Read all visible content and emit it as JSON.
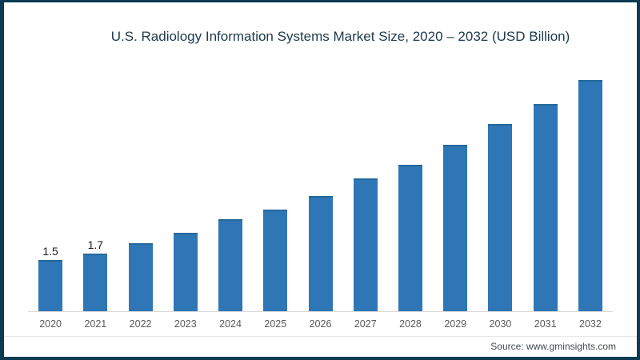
{
  "window": {
    "background": "#ffffff",
    "border_color": "#0d3a52"
  },
  "chart_data": {
    "type": "bar",
    "title": "U.S. Radiology Information Systems Market Size, 2020 – 2032 (USD Billion)",
    "categories": [
      "2020",
      "2021",
      "2022",
      "2023",
      "2024",
      "2025",
      "2026",
      "2027",
      "2028",
      "2029",
      "2030",
      "2031",
      "2032"
    ],
    "values": [
      1.5,
      1.7,
      2.0,
      2.3,
      2.7,
      3.0,
      3.4,
      3.9,
      4.3,
      4.9,
      5.5,
      6.1,
      6.8
    ],
    "bar_value_labels": [
      "1.5",
      "1.7",
      "",
      "",
      "",
      "",
      "",
      "",
      "",
      "",
      "",
      "",
      ""
    ],
    "xlabel": "",
    "ylabel": "",
    "ylim": [
      0,
      7.2
    ],
    "grid": false,
    "legend": false,
    "bar_color": "#2e76b5",
    "axis_line_color": "#d9d9d9",
    "tick_label_color": "#595959",
    "value_label_color": "#1a1a1a",
    "title_color": "#203a4c"
  },
  "footer": {
    "source_text": "Source: www.gminsights.com",
    "text_color": "#40494f"
  }
}
